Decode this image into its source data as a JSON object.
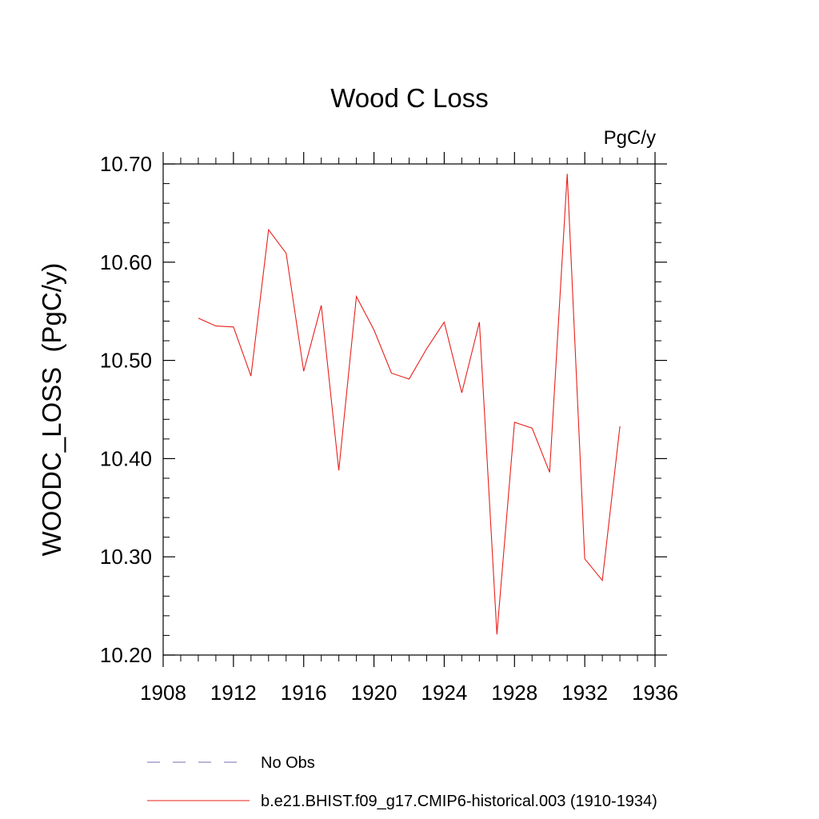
{
  "chart_data": {
    "type": "line",
    "title": "Wood C Loss",
    "units_label": "PgC/y",
    "ylabel": "WOODC_LOSS  (PgC/y)",
    "xlabel": "",
    "xlim": [
      1908,
      1936
    ],
    "ylim": [
      10.2,
      10.7
    ],
    "x_major_ticks": [
      1908,
      1912,
      1916,
      1920,
      1924,
      1928,
      1932,
      1936
    ],
    "x_tick_labels": [
      "1908",
      "1912",
      "1916",
      "1920",
      "1924",
      "1928",
      "1932",
      "1936"
    ],
    "y_major_ticks": [
      10.2,
      10.3,
      10.4,
      10.5,
      10.6,
      10.7
    ],
    "y_tick_labels": [
      "10.20",
      "10.30",
      "10.40",
      "10.50",
      "10.60",
      "10.70"
    ],
    "x_minor_step": 1,
    "y_minor_step": 0.02,
    "grid": false,
    "legend_position": "bottom",
    "series": [
      {
        "name": "b.e21.BHIST.f09_g17.CMIP6-historical.003 (1910-1934)",
        "color": "#e8201b",
        "style": "solid",
        "x": [
          1910,
          1911,
          1912,
          1913,
          1914,
          1915,
          1916,
          1917,
          1918,
          1919,
          1920,
          1921,
          1922,
          1923,
          1924,
          1925,
          1926,
          1927,
          1928,
          1929,
          1930,
          1931,
          1932,
          1933,
          1934
        ],
        "values": [
          10.543,
          10.535,
          10.534,
          10.484,
          10.633,
          10.609,
          10.489,
          10.556,
          10.388,
          10.565,
          10.531,
          10.487,
          10.481,
          10.512,
          10.539,
          10.467,
          10.539,
          10.221,
          10.437,
          10.431,
          10.386,
          10.69,
          10.298,
          10.276,
          10.433
        ]
      }
    ],
    "legend": [
      {
        "label": "No Obs",
        "color": "#7b6bb5",
        "style": "dashed"
      },
      {
        "label": "b.e21.BHIST.f09_g17.CMIP6-historical.003 (1910-1934)",
        "color": "#e8201b",
        "style": "solid"
      }
    ]
  }
}
